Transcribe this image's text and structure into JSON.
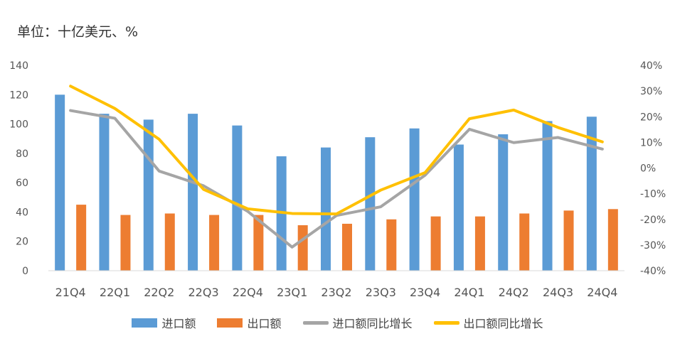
{
  "chart_data": {
    "type": "bar+line",
    "unit_label": "单位：十亿美元、%",
    "categories": [
      "21Q4",
      "22Q1",
      "22Q2",
      "22Q3",
      "22Q4",
      "23Q1",
      "23Q2",
      "23Q3",
      "23Q4",
      "24Q1",
      "24Q2",
      "24Q3",
      "24Q4"
    ],
    "series": [
      {
        "name": "进口额",
        "type": "bar",
        "axis": "left",
        "color": "#5B9BD5",
        "values": [
          120,
          107,
          103,
          107,
          99,
          78,
          84,
          91,
          97,
          86,
          93,
          102,
          105
        ]
      },
      {
        "name": "出口额",
        "type": "bar",
        "axis": "left",
        "color": "#ED7D31",
        "values": [
          45,
          38,
          39,
          38,
          38,
          31,
          32,
          35,
          37,
          37,
          39,
          41,
          42
        ]
      },
      {
        "name": "进口额同比增长",
        "type": "line",
        "axis": "right",
        "color": "#A5A5A5",
        "values": [
          22.4,
          19.4,
          -1.2,
          -6.9,
          -16.9,
          -30.8,
          -18.5,
          -15.1,
          -2.8,
          15.1,
          9.9,
          11.9,
          7.4
        ]
      },
      {
        "name": "出口额同比增长",
        "type": "line",
        "axis": "right",
        "color": "#FFC000",
        "values": [
          31.9,
          23.2,
          11.2,
          -8.3,
          -15.9,
          -17.7,
          -17.9,
          -8.6,
          -1.8,
          19.2,
          22.6,
          15.8,
          10.2
        ]
      }
    ],
    "y_left": {
      "min": 0,
      "max": 140,
      "step": 20,
      "ticks": [
        "0",
        "20",
        "40",
        "60",
        "80",
        "100",
        "120",
        "140"
      ]
    },
    "y_right": {
      "min": -40,
      "max": 40,
      "step": 10,
      "ticks": [
        "-40%",
        "-30%",
        "-20%",
        "-10%",
        "0%",
        "10%",
        "20%",
        "30%",
        "40%"
      ]
    },
    "grid": false,
    "legend_position": "bottom"
  }
}
